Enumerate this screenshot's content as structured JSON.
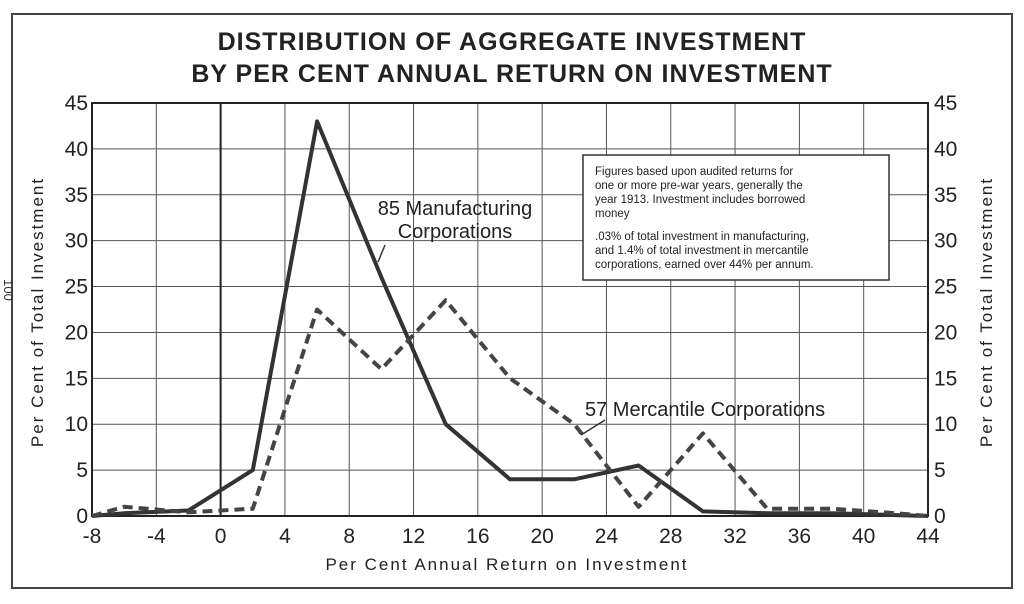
{
  "page_number": "100",
  "chart_data": {
    "type": "line",
    "title": [
      "DISTRIBUTION OF AGGREGATE INVESTMENT",
      "BY PER CENT ANNUAL RETURN ON INVESTMENT"
    ],
    "xlabel": "Per Cent Annual Return on Investment",
    "ylabel_left": "Per Cent of Total Investment",
    "ylabel_right": "Per Cent of Total Investment",
    "xlim": [
      -8,
      44
    ],
    "ylim": [
      0,
      45
    ],
    "xticks": [
      -8,
      -4,
      0,
      4,
      8,
      12,
      16,
      20,
      24,
      28,
      32,
      36,
      40,
      44
    ],
    "yticks": [
      0,
      5,
      10,
      15,
      20,
      25,
      30,
      35,
      40,
      45
    ],
    "grid": true,
    "series": [
      {
        "name": "85 Manufacturing Corporations",
        "label_lines": [
          "85 Manufacturing",
          "Corporations"
        ],
        "style": "solid",
        "color": "#333333",
        "x": [
          -8,
          -6,
          -2,
          2,
          6,
          10,
          14,
          18,
          22,
          26,
          30,
          34,
          38,
          42,
          44
        ],
        "y": [
          0,
          0.3,
          0.6,
          5,
          43,
          26,
          10,
          4,
          4,
          5.5,
          0.5,
          0.3,
          0.3,
          0.1,
          0
        ]
      },
      {
        "name": "57 Mercantile Corporations",
        "label_lines": [
          "57 Mercantile Corporations"
        ],
        "style": "dashed",
        "color": "#444444",
        "x": [
          -8,
          -6,
          -2,
          2,
          6,
          10,
          14,
          18,
          22,
          26,
          30,
          34,
          38,
          42,
          44
        ],
        "y": [
          0,
          1,
          0.4,
          0.8,
          22.5,
          16,
          23.5,
          15,
          10,
          1,
          9,
          0.8,
          0.8,
          0.3,
          0
        ]
      }
    ],
    "annotation": {
      "paragraph1": [
        "Figures based upon audited returns for",
        "one or more pre-war years, generally the",
        "year 1913. Investment includes borrowed",
        "money"
      ],
      "paragraph2": [
        ".03% of total investment in manufacturing,",
        "and 1.4% of total investment in mercantile",
        "corporations, earned over 44% per annum."
      ]
    }
  }
}
